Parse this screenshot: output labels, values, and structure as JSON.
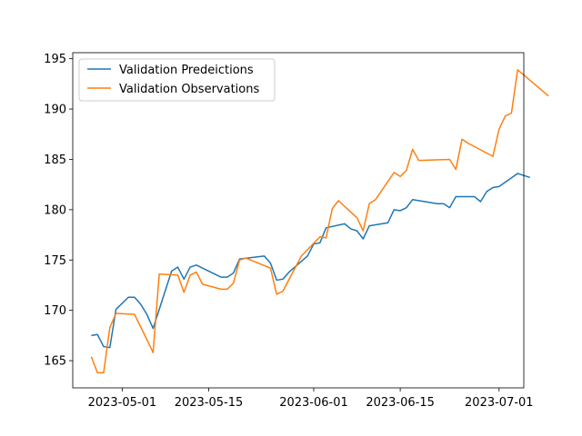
{
  "chart_data": {
    "type": "line",
    "title": "",
    "xlabel": "",
    "ylabel": "",
    "xlim": [
      "2023-04-23",
      "2023-07-05"
    ],
    "ylim": [
      162.3,
      195.6
    ],
    "x_ticks": [
      "2023-05-01",
      "2023-05-15",
      "2023-06-01",
      "2023-06-15",
      "2023-07-01"
    ],
    "y_ticks": [
      165,
      170,
      175,
      180,
      185,
      190,
      195
    ],
    "grid": false,
    "legend_position": "top-left",
    "series": [
      {
        "name": "Validation Predeictions",
        "color": "#1f77b4",
        "points": [
          [
            "2023-04-26",
            167.5
          ],
          [
            "2023-04-27",
            167.6
          ],
          [
            "2023-04-28",
            166.4
          ],
          [
            "2023-04-29",
            166.3
          ],
          [
            "2023-04-30",
            170.1
          ],
          [
            "2023-05-02",
            171.3
          ],
          [
            "2023-05-03",
            171.3
          ],
          [
            "2023-05-04",
            170.6
          ],
          [
            "2023-05-05",
            169.6
          ],
          [
            "2023-05-06",
            168.2
          ],
          [
            "2023-05-09",
            173.9
          ],
          [
            "2023-05-10",
            174.3
          ],
          [
            "2023-05-11",
            173.1
          ],
          [
            "2023-05-12",
            174.3
          ],
          [
            "2023-05-13",
            174.5
          ],
          [
            "2023-05-16",
            173.6
          ],
          [
            "2023-05-17",
            173.3
          ],
          [
            "2023-05-18",
            173.3
          ],
          [
            "2023-05-19",
            173.7
          ],
          [
            "2023-05-20",
            175.1
          ],
          [
            "2023-05-24",
            175.4
          ],
          [
            "2023-05-25",
            174.7
          ],
          [
            "2023-05-26",
            173.0
          ],
          [
            "2023-05-27",
            173.1
          ],
          [
            "2023-05-28",
            173.8
          ],
          [
            "2023-05-31",
            175.4
          ],
          [
            "2023-06-01",
            176.6
          ],
          [
            "2023-06-02",
            176.7
          ],
          [
            "2023-06-03",
            178.2
          ],
          [
            "2023-06-06",
            178.6
          ],
          [
            "2023-06-07",
            178.1
          ],
          [
            "2023-06-08",
            177.9
          ],
          [
            "2023-06-09",
            177.1
          ],
          [
            "2023-06-10",
            178.4
          ],
          [
            "2023-06-13",
            178.7
          ],
          [
            "2023-06-14",
            180.0
          ],
          [
            "2023-06-15",
            179.9
          ],
          [
            "2023-06-16",
            180.2
          ],
          [
            "2023-06-17",
            181.0
          ],
          [
            "2023-06-21",
            180.6
          ],
          [
            "2023-06-22",
            180.6
          ],
          [
            "2023-06-23",
            180.2
          ],
          [
            "2023-06-24",
            181.3
          ],
          [
            "2023-06-27",
            181.3
          ],
          [
            "2023-06-28",
            180.8
          ],
          [
            "2023-06-29",
            181.8
          ],
          [
            "2023-06-30",
            182.2
          ],
          [
            "2023-07-01",
            182.3
          ],
          [
            "2023-07-04",
            183.6
          ],
          [
            "2023-07-06",
            183.2
          ]
        ]
      },
      {
        "name": "Validation Observations",
        "color": "#ff7f0e",
        "points": [
          [
            "2023-04-26",
            165.4
          ],
          [
            "2023-04-27",
            163.8
          ],
          [
            "2023-04-28",
            163.8
          ],
          [
            "2023-04-29",
            168.3
          ],
          [
            "2023-04-30",
            169.7
          ],
          [
            "2023-05-03",
            169.6
          ],
          [
            "2023-05-05",
            167.1
          ],
          [
            "2023-05-06",
            165.8
          ],
          [
            "2023-05-07",
            173.6
          ],
          [
            "2023-05-10",
            173.5
          ],
          [
            "2023-05-11",
            171.8
          ],
          [
            "2023-05-12",
            173.5
          ],
          [
            "2023-05-13",
            173.8
          ],
          [
            "2023-05-14",
            172.6
          ],
          [
            "2023-05-17",
            172.1
          ],
          [
            "2023-05-18",
            172.1
          ],
          [
            "2023-05-19",
            172.7
          ],
          [
            "2023-05-20",
            175.0
          ],
          [
            "2023-05-21",
            175.2
          ],
          [
            "2023-05-25",
            174.2
          ],
          [
            "2023-05-26",
            171.6
          ],
          [
            "2023-05-27",
            171.9
          ],
          [
            "2023-05-30",
            175.4
          ],
          [
            "2023-06-02",
            177.3
          ],
          [
            "2023-06-03",
            177.2
          ],
          [
            "2023-06-04",
            180.1
          ],
          [
            "2023-06-05",
            180.9
          ],
          [
            "2023-06-08",
            179.2
          ],
          [
            "2023-06-09",
            177.9
          ],
          [
            "2023-06-10",
            180.6
          ],
          [
            "2023-06-11",
            181.0
          ],
          [
            "2023-06-14",
            183.7
          ],
          [
            "2023-06-15",
            183.3
          ],
          [
            "2023-06-16",
            183.9
          ],
          [
            "2023-06-17",
            186.0
          ],
          [
            "2023-06-18",
            184.9
          ],
          [
            "2023-06-23",
            185.0
          ],
          [
            "2023-06-24",
            184.0
          ],
          [
            "2023-06-25",
            187.0
          ],
          [
            "2023-06-26",
            186.6
          ],
          [
            "2023-06-30",
            185.3
          ],
          [
            "2023-07-01",
            188.0
          ],
          [
            "2023-07-02",
            189.3
          ],
          [
            "2023-07-03",
            189.6
          ],
          [
            "2023-07-04",
            193.9
          ],
          [
            "2023-07-09",
            191.3
          ]
        ]
      }
    ]
  }
}
